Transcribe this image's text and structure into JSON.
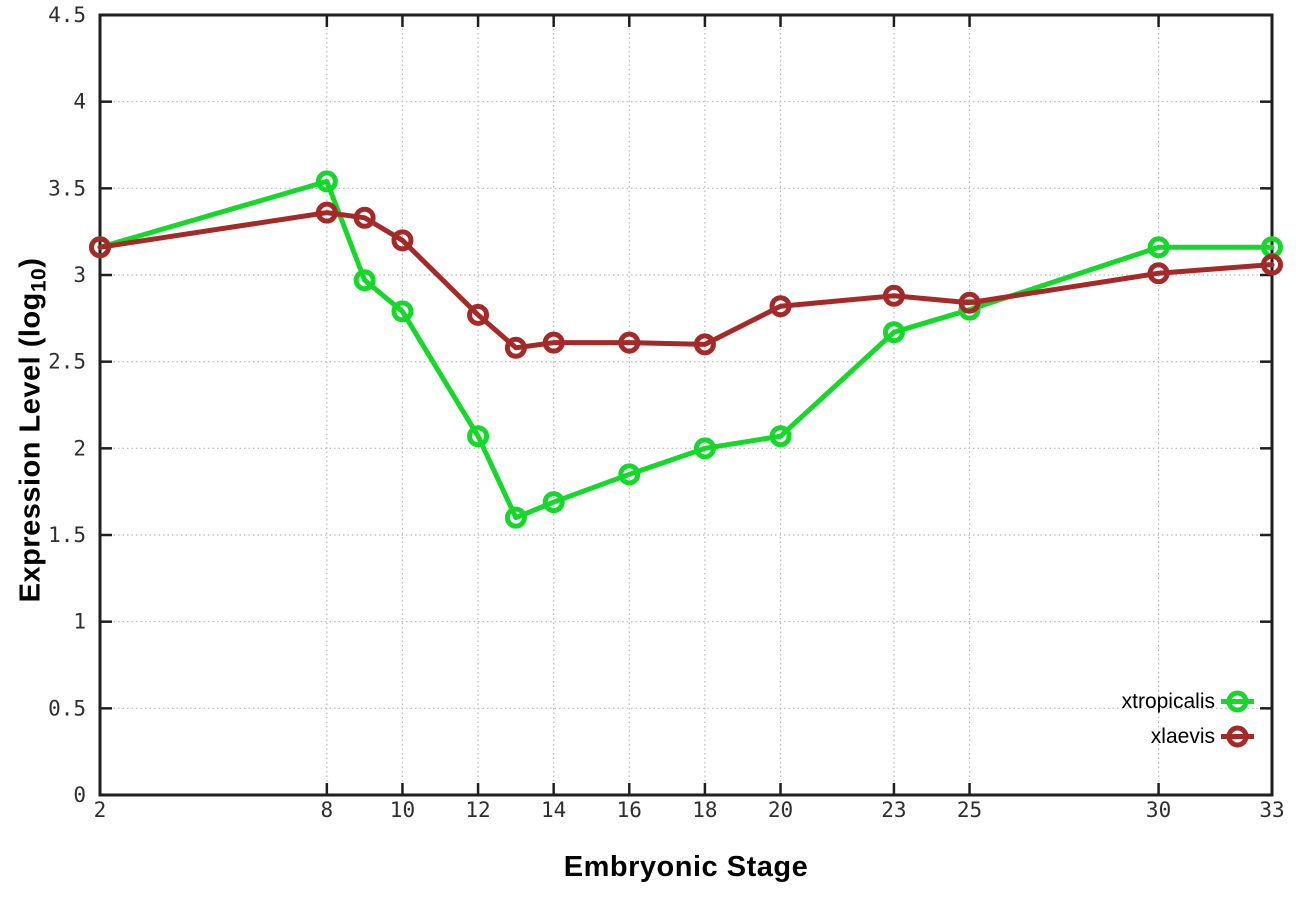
{
  "figure": {
    "background": "#ffffff",
    "border_color": "#1f1f1f",
    "grid_color": "#b8b8b8",
    "tick_label_color": "#2e2e2e"
  },
  "chart_data": {
    "type": "line",
    "title": "",
    "xlabel": "Embryonic Stage",
    "ylabel": "Expression Level (log10)",
    "ylabel_parts": {
      "pre": "Expression Level (log",
      "sub": "10",
      "post": ")"
    },
    "xlim": [
      2,
      33
    ],
    "ylim": [
      0,
      4.5
    ],
    "grid": true,
    "legend_position": "bottom-right",
    "x_ticks": [
      2,
      8,
      10,
      12,
      14,
      16,
      18,
      20,
      23,
      25,
      30,
      33
    ],
    "y_ticks": [
      0,
      0.5,
      1,
      1.5,
      2,
      2.5,
      3,
      3.5,
      4,
      4.5
    ],
    "x": [
      2,
      8,
      9,
      10,
      12,
      13,
      14,
      16,
      18,
      20,
      23,
      25,
      30,
      33
    ],
    "series": [
      {
        "name": "xtropicalis",
        "color": "#15d82b",
        "values": [
          3.16,
          3.54,
          2.97,
          2.79,
          2.07,
          1.6,
          1.69,
          1.85,
          2.0,
          2.07,
          2.67,
          2.8,
          3.16,
          3.16
        ]
      },
      {
        "name": "xlaevis",
        "color": "#a42a2a",
        "values": [
          3.16,
          3.36,
          3.33,
          3.2,
          2.77,
          2.58,
          2.61,
          2.61,
          2.6,
          2.82,
          2.88,
          2.84,
          3.01,
          3.06
        ]
      }
    ]
  }
}
